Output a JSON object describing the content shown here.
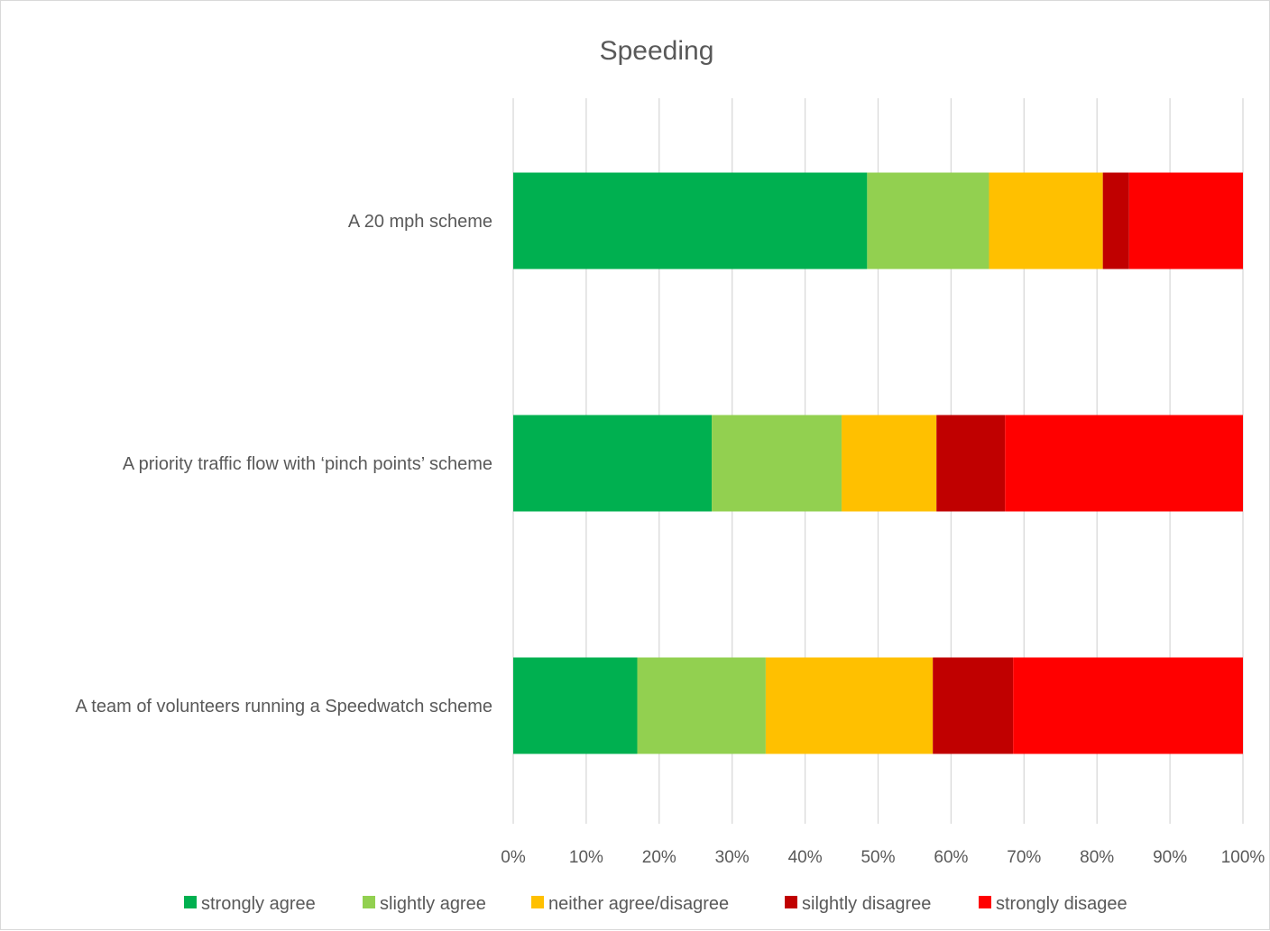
{
  "chart_data": {
    "type": "bar",
    "orientation": "horizontal",
    "stacked": "percent",
    "title": "Speeding",
    "categories": [
      "A 20 mph scheme",
      "A priority traffic flow with ‘pinch points’ scheme",
      "A team of volunteers running a Speedwatch scheme"
    ],
    "series": [
      {
        "name": "strongly agree",
        "color": "#00B050",
        "values": [
          48.5,
          27.2,
          17.0
        ]
      },
      {
        "name": "slightly agree",
        "color": "#92D050",
        "values": [
          16.7,
          17.8,
          17.6
        ]
      },
      {
        "name": "neither agree/disagree",
        "color": "#FFC000",
        "values": [
          15.6,
          13.0,
          22.9
        ]
      },
      {
        "name": "silghtly disagree",
        "color": "#C00000",
        "values": [
          3.6,
          9.4,
          11.0
        ]
      },
      {
        "name": "strongly disagee",
        "color": "#FF0000",
        "values": [
          15.6,
          32.6,
          31.5
        ]
      }
    ],
    "xlim": [
      0,
      100
    ],
    "xticks": [
      "0%",
      "10%",
      "20%",
      "30%",
      "40%",
      "50%",
      "60%",
      "70%",
      "80%",
      "90%",
      "100%"
    ],
    "grid": true,
    "legend_position": "bottom"
  }
}
